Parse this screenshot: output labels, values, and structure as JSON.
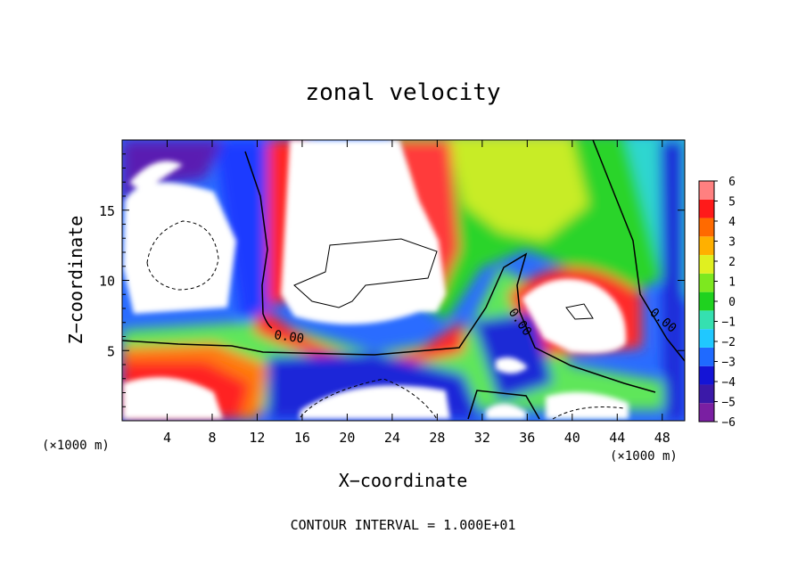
{
  "chart_data": {
    "type": "heatmap",
    "title": "zonal velocity",
    "xlabel": "X−coordinate",
    "ylabel": "Z−coordinate",
    "x_unit": "(×1000 m)",
    "footer": "CONTOUR INTERVAL = 1.000E+01",
    "xlim": [
      0,
      50
    ],
    "ylim": [
      0,
      20
    ],
    "xticks": [
      4,
      8,
      12,
      16,
      20,
      24,
      28,
      32,
      36,
      40,
      44,
      48
    ],
    "yticks": [
      5,
      10,
      15
    ],
    "colorbar": {
      "levels": [
        -6,
        -5,
        -4,
        -3,
        -2,
        -1,
        0,
        1,
        2,
        3,
        4,
        5,
        6
      ],
      "tick_labels": [
        "−6",
        "−5",
        "−4",
        "−3",
        "−2",
        "−1",
        "0",
        "1",
        "2",
        "3",
        "4",
        "5",
        "6"
      ],
      "colors": [
        "#7a1fa2",
        "#3b19a8",
        "#1414d6",
        "#1f6aff",
        "#20c8ff",
        "#35e0b0",
        "#1fd21f",
        "#7de81f",
        "#e0f020",
        "#ffb000",
        "#ff6a00",
        "#ff1a1a",
        "#ff8080"
      ]
    },
    "contour_labels": [
      "0.00",
      "0.00",
      "0.00"
    ],
    "out_of_range_color": "#ffffff"
  }
}
